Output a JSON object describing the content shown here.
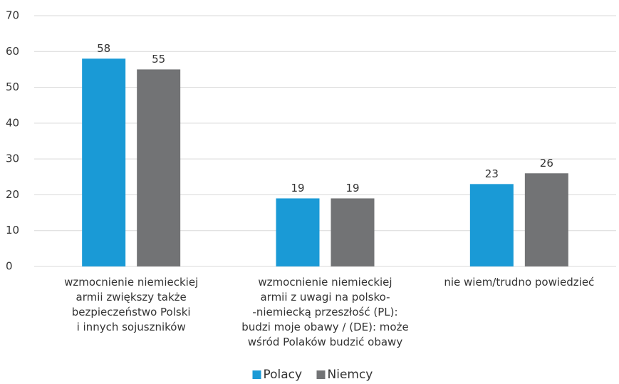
{
  "chart_data": {
    "type": "bar",
    "categories": [
      "wzmocnienie niemieckiej\narmii zwiększy także\nbezpieczeństwo Polski\ni innych sojuszników",
      "wzmocnienie niemieckiej\narmii z uwagi na polsko-\n-niemiecką przeszłość (PL):\nbudzi moje obawy / (DE): może\nwśród Polaków budzić obawy",
      "nie wiem/trudno powiedzieć"
    ],
    "series": [
      {
        "name": "Polacy",
        "color": "#1a9ad6",
        "values": [
          58,
          19,
          23
        ]
      },
      {
        "name": "Niemcy",
        "color": "#727375",
        "values": [
          55,
          19,
          26
        ]
      }
    ],
    "ylim": [
      0,
      70
    ],
    "yticks": [
      0,
      10,
      20,
      30,
      40,
      50,
      60,
      70
    ],
    "grid": true,
    "legend": "bottom"
  }
}
